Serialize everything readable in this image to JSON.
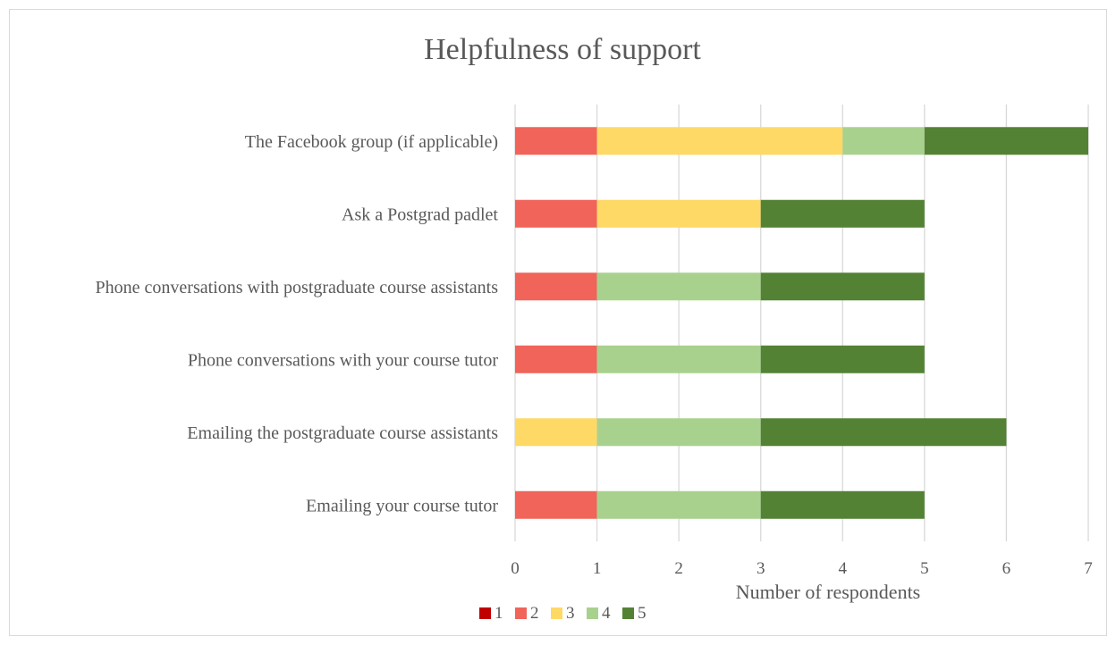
{
  "chart_data": {
    "type": "bar",
    "orientation": "horizontal",
    "stacked": true,
    "title": "Helpfulness of support",
    "xlabel": "Number of respondents",
    "ylabel": "",
    "xlim": [
      0,
      7
    ],
    "xticks": [
      "0",
      "1",
      "2",
      "3",
      "4",
      "5",
      "6",
      "7"
    ],
    "grid": true,
    "legend_position": "bottom",
    "categories": [
      "The Facebook group (if applicable)",
      "Ask a Postgrad padlet",
      "Phone conversations with postgraduate course assistants",
      "Phone conversations with your course tutor",
      "Emailing the postgraduate course assistants",
      "Emailing your course tutor"
    ],
    "series": [
      {
        "name": "1",
        "color": "#c00000",
        "values": [
          0,
          0,
          0,
          0,
          0,
          0
        ]
      },
      {
        "name": "2",
        "color": "#f0645a",
        "values": [
          1,
          1,
          1,
          1,
          0,
          1
        ]
      },
      {
        "name": "3",
        "color": "#ffd966",
        "values": [
          3,
          2,
          0,
          0,
          1,
          0
        ]
      },
      {
        "name": "4",
        "color": "#a9d18e",
        "values": [
          1,
          0,
          2,
          2,
          2,
          2
        ]
      },
      {
        "name": "5",
        "color": "#548235",
        "values": [
          2,
          2,
          2,
          2,
          3,
          2
        ]
      }
    ]
  }
}
